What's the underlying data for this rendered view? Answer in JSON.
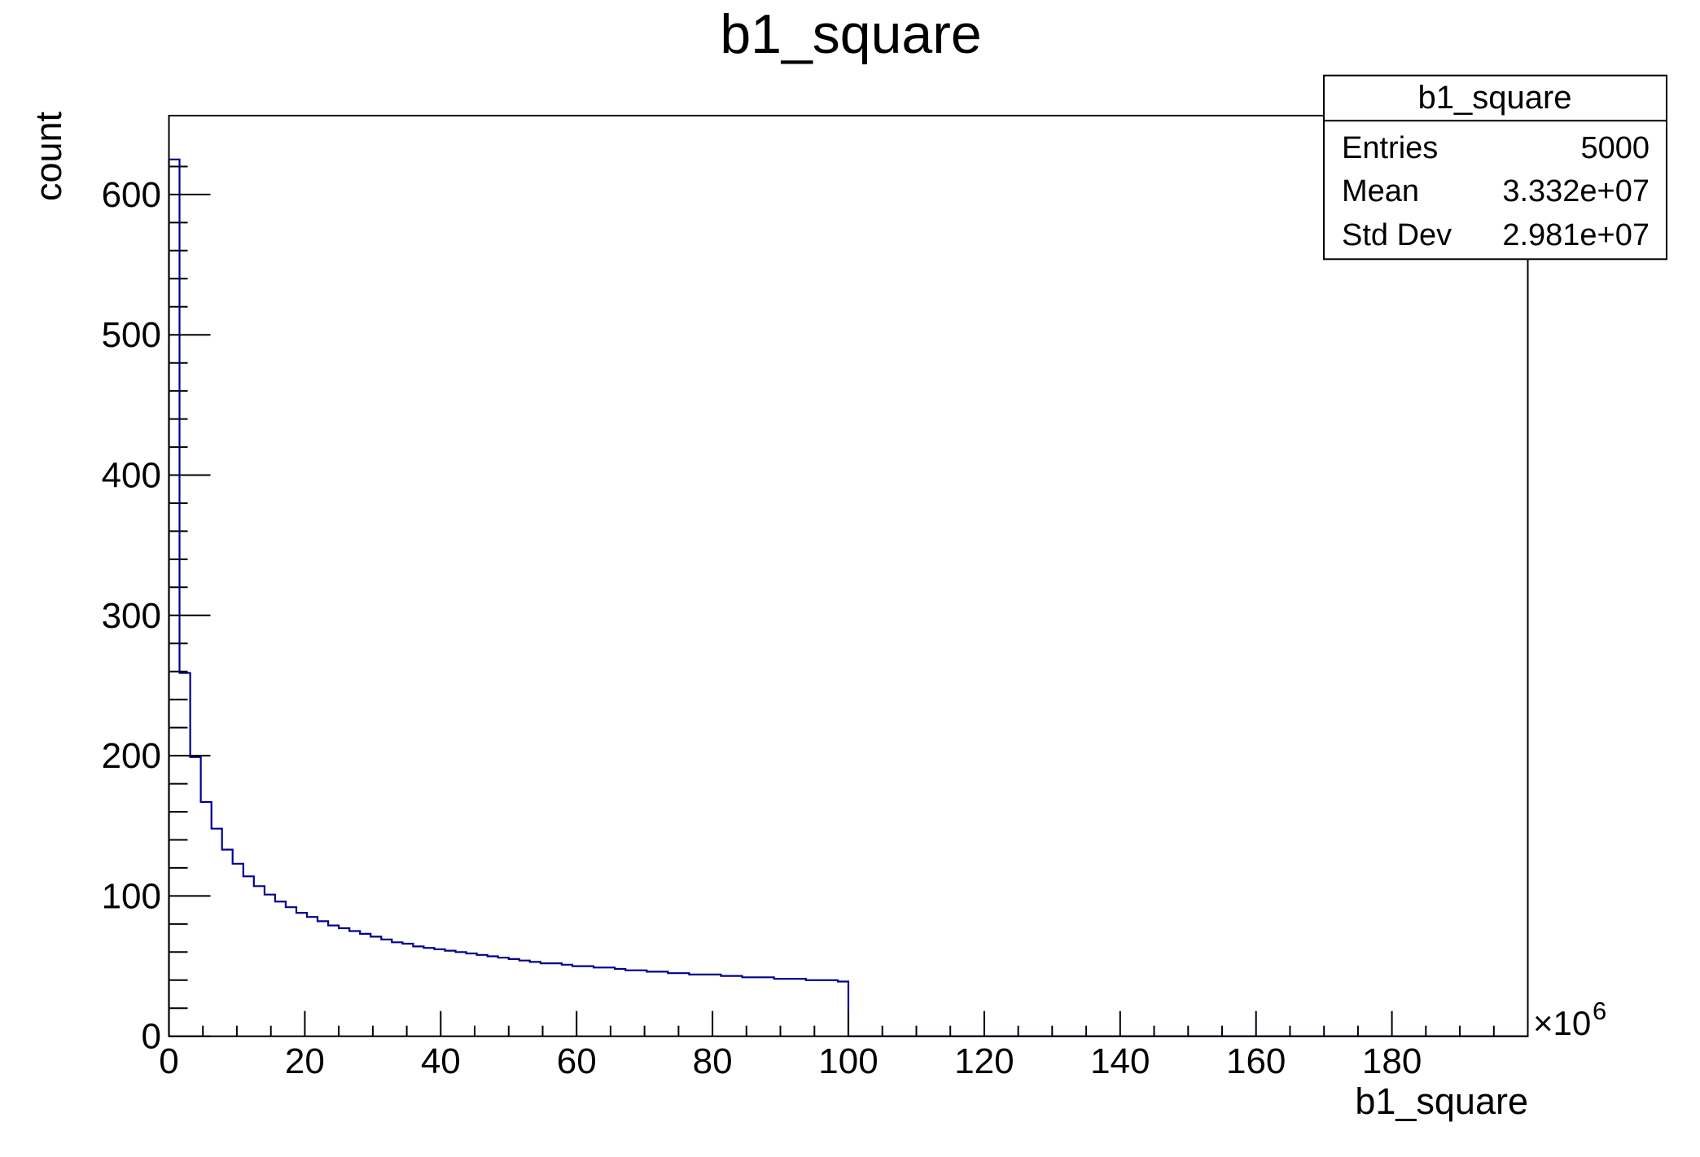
{
  "window": {
    "background": "#ffffff"
  },
  "stats": {
    "title": "b1_square",
    "rows": [
      {
        "label": "Entries",
        "value": "5000"
      },
      {
        "label": "Mean",
        "value": "3.332e+07"
      },
      {
        "label": "Std Dev",
        "value": "2.981e+07"
      }
    ]
  },
  "chart_data": {
    "type": "bar",
    "subtype": "step-histogram-outline",
    "title": "b1_square",
    "xlabel": "b1_square",
    "ylabel": "count",
    "x_scale_exponent": "×10",
    "x_scale_exponent_power": "6",
    "xlim": [
      0,
      200000000
    ],
    "ylim": [
      0,
      656.25
    ],
    "grid": false,
    "legend": false,
    "line_color": "#00008c",
    "x_axis": {
      "unit": 1000000,
      "major_tick_step_units": 20,
      "minor_tick_step_units": 5,
      "tick_labels": [
        "0",
        "20",
        "40",
        "60",
        "80",
        "100",
        "120",
        "140",
        "160",
        "180"
      ]
    },
    "y_axis": {
      "major_tick_step": 100,
      "minor_tick_step": 20,
      "tick_labels": [
        "0",
        "100",
        "200",
        "300",
        "400",
        "500",
        "600"
      ]
    },
    "histogram": {
      "nbins": 128,
      "xmin": 0,
      "xmax": 200000000,
      "bin_width": 1562500,
      "counts": [
        625,
        259,
        199,
        167,
        148,
        133,
        123,
        114,
        107,
        101,
        96,
        92,
        88,
        85,
        82,
        79,
        77,
        75,
        73,
        71,
        69,
        67,
        66,
        64,
        63,
        62,
        61,
        60,
        59,
        58,
        57,
        56,
        55,
        54,
        53,
        52,
        52,
        51,
        50,
        50,
        49,
        49,
        48,
        47,
        47,
        46,
        46,
        45,
        45,
        44,
        44,
        44,
        43,
        43,
        42,
        42,
        42,
        41,
        41,
        41,
        40,
        40,
        40,
        39,
        0,
        0,
        0,
        0,
        0,
        0,
        0,
        0,
        0,
        0,
        0,
        0,
        0,
        0,
        0,
        0,
        0,
        0,
        0,
        0,
        0,
        0,
        0,
        0,
        0,
        0,
        0,
        0,
        0,
        0,
        0,
        0,
        0,
        0,
        0,
        0,
        0,
        0,
        0,
        0,
        0,
        0,
        0,
        0,
        0,
        0,
        0,
        0,
        0,
        0,
        0,
        0,
        0,
        0,
        0,
        0,
        0,
        0,
        0,
        0,
        0,
        0,
        0,
        0
      ]
    }
  }
}
